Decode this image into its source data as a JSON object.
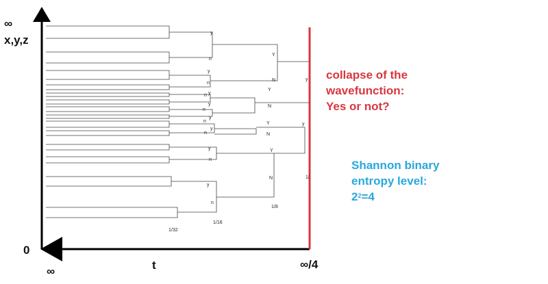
{
  "axis_labels": {
    "y_top": "∞",
    "y_name": "x,y,z",
    "origin": "0",
    "x_left": "∞",
    "x_name": "t",
    "x_right": "∞/4"
  },
  "branch_labels": {
    "y": "y",
    "n": "n",
    "Y": "Y",
    "N": "N"
  },
  "fractions": {
    "f_1_4": "1/",
    "f_1_8": "1/8",
    "f_1_16": "1/16",
    "f_1_32": "1/32"
  },
  "collapse": {
    "lines": [
      "collapse of the",
      "wavefunction:",
      "Yes or not?"
    ],
    "color": "#d9363e"
  },
  "shannon": {
    "lines": [
      "Shannon binary",
      "entropy level:"
    ],
    "formula_base": "2",
    "formula_exp": "2",
    "formula_rest": "=4",
    "color": "#29a8dc"
  },
  "colors": {
    "axis": "#000000",
    "tree": "#444444",
    "collapse_line": "#d9363e"
  }
}
